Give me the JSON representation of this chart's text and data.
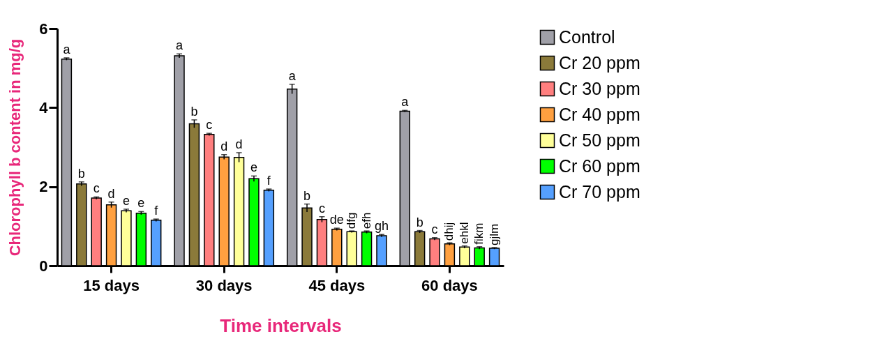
{
  "chart_data": {
    "type": "bar",
    "xlabel": "Time intervals",
    "ylabel": "Chlorophyll b content in mg/g",
    "categories": [
      "15 days",
      "30 days",
      "45 days",
      "60 days"
    ],
    "ylim": [
      0,
      6
    ],
    "yticks": [
      0,
      2,
      4,
      6
    ],
    "grid": false,
    "legend": "right",
    "series": [
      {
        "name": "Control",
        "color": "#a0a0a8",
        "values": [
          5.23,
          5.31,
          4.47,
          3.91
        ],
        "errors": [
          0.03,
          0.05,
          0.12,
          0.02
        ],
        "value_labels": [
          "a",
          "a",
          "a",
          "a"
        ]
      },
      {
        "name": "Cr 20 ppm",
        "color": "#8b7a3a",
        "values": [
          2.07,
          3.59,
          1.46,
          0.86
        ],
        "errors": [
          0.05,
          0.1,
          0.1,
          0.03
        ],
        "value_labels": [
          "b",
          "b",
          "b",
          "b"
        ]
      },
      {
        "name": "Cr 30 ppm",
        "color": "#ff7f7f",
        "values": [
          1.71,
          3.32,
          1.17,
          0.68
        ],
        "errors": [
          0.03,
          0.03,
          0.07,
          0.03
        ],
        "value_labels": [
          "c",
          "c",
          "c",
          "c"
        ]
      },
      {
        "name": "Cr 40 ppm",
        "color": "#ffa040",
        "values": [
          1.54,
          2.75,
          0.92,
          0.55
        ],
        "errors": [
          0.07,
          0.06,
          0.03,
          0.03
        ],
        "value_labels": [
          "d",
          "d",
          "de",
          "dhij"
        ]
      },
      {
        "name": "Cr 50 ppm",
        "color": "#ffff99",
        "values": [
          1.39,
          2.74,
          0.86,
          0.47
        ],
        "errors": [
          0.04,
          0.12,
          0.02,
          0.03
        ],
        "value_labels": [
          "e",
          "d",
          "dfg",
          "ehkl"
        ]
      },
      {
        "name": "Cr 60 ppm",
        "color": "#00ff00",
        "values": [
          1.33,
          2.2,
          0.85,
          0.45
        ],
        "errors": [
          0.04,
          0.07,
          0.03,
          0.03
        ],
        "value_labels": [
          "e",
          "e",
          "efh",
          "fikm"
        ]
      },
      {
        "name": "Cr 70 ppm",
        "color": "#55a0ff",
        "values": [
          1.15,
          1.91,
          0.76,
          0.44
        ],
        "errors": [
          0.03,
          0.03,
          0.03,
          0.02
        ],
        "value_labels": [
          "f",
          "f",
          "gh",
          "gjlm"
        ]
      }
    ]
  }
}
